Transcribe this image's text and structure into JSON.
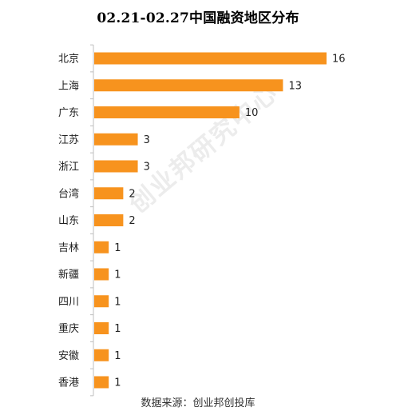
{
  "watermark": "创业邦研究中心",
  "source": "数据来源：创业邦创投库",
  "chart_data": {
    "type": "bar",
    "orientation": "horizontal",
    "title": "02.21-02.27中国融资地区分布",
    "categories": [
      "北京",
      "上海",
      "广东",
      "江苏",
      "浙江",
      "台湾",
      "山东",
      "吉林",
      "新疆",
      "四川",
      "重庆",
      "安徽",
      "香港"
    ],
    "values": [
      16,
      13,
      10,
      3,
      3,
      2,
      2,
      1,
      1,
      1,
      1,
      1,
      1
    ],
    "xlim": [
      0,
      16
    ],
    "grid": false,
    "legend": "none",
    "bar_color": "#F7931E",
    "axis_color": "#bfbfbf",
    "text_color": "#222222"
  }
}
